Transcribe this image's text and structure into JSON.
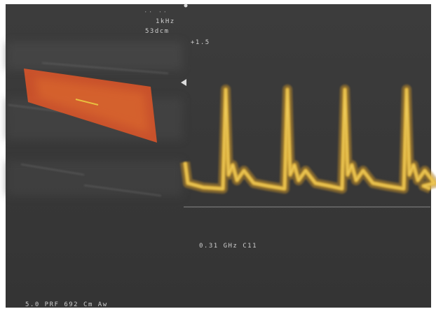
{
  "overlay": {
    "frequency": "1kHz",
    "depth": "53dcm",
    "gain": "+1.5",
    "scale": "0.31 GHz C11",
    "footer": "5.0 PRF 692 Cm Aw"
  }
}
